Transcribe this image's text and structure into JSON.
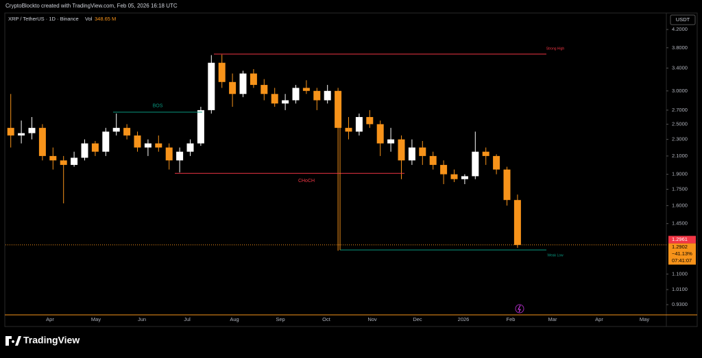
{
  "header": "CryptoBlockto created with TradingView.com, Feb 05, 2026 16:18 UTC",
  "brand": "TradingView",
  "chart_data": {
    "type": "candlestick",
    "symbol": "XRP / TetherUS · 1D · Binance",
    "volume_label": "Vol",
    "volume": "348.65 M",
    "currency": "USDT",
    "log_scale": true,
    "up_color": "#ffffff",
    "down_color": "#f7931a",
    "ylim": [
      0.886,
      4.58
    ],
    "yticks": [
      {
        "value": 4.2,
        "label": "4.2000"
      },
      {
        "value": 3.8,
        "label": "3.8000"
      },
      {
        "value": 3.4,
        "label": "3.4000"
      },
      {
        "value": 3,
        "label": "3.0000"
      },
      {
        "value": 2.7,
        "label": "2.7000"
      },
      {
        "value": 2.5,
        "label": "2.5000"
      },
      {
        "value": 2.3,
        "label": "2.3000"
      },
      {
        "value": 2.1,
        "label": "2.1000"
      },
      {
        "value": 1.9,
        "label": "1.9000"
      },
      {
        "value": 1.75,
        "label": "1.7500"
      },
      {
        "value": 1.6,
        "label": "1.6000"
      },
      {
        "value": 1.45,
        "label": "1.4500"
      },
      {
        "value": 1.1,
        "label": "1.1000"
      },
      {
        "value": 1.01,
        "label": "1.0100"
      },
      {
        "value": 0.93,
        "label": "0.9300"
      }
    ],
    "month_labels": [
      "Apr",
      "May",
      "Jun",
      "Jul",
      "Aug",
      "Sep",
      "Oct",
      "Nov",
      "Dec",
      "2026",
      "Feb",
      "Mar",
      "Apr",
      "May"
    ],
    "categories": [
      null,
      null,
      null,
      null,
      null,
      null,
      null,
      null,
      null,
      null,
      null,
      null,
      null,
      null,
      null,
      null,
      null,
      null,
      null,
      null,
      null,
      null,
      null,
      null,
      null,
      null,
      null,
      null,
      null,
      null,
      null,
      null,
      null,
      null,
      null,
      null,
      null,
      null,
      null,
      null,
      null,
      null,
      null,
      null,
      null,
      null,
      null,
      null,
      null
    ],
    "open": [
      2.45,
      2.35,
      2.38,
      2.45,
      2.1,
      2.05,
      2.0,
      2.08,
      2.25,
      2.15,
      2.4,
      2.45,
      2.35,
      2.2,
      2.25,
      2.2,
      2.05,
      2.15,
      2.25,
      2.7,
      3.5,
      3.15,
      2.95,
      3.3,
      3.1,
      2.95,
      2.8,
      2.85,
      3.05,
      3.0,
      2.85,
      3.0,
      2.45,
      2.4,
      2.6,
      2.5,
      2.25,
      2.3,
      2.05,
      2.2,
      2.1,
      2.0,
      1.9,
      1.85,
      1.88,
      2.15,
      2.1,
      1.95,
      1.65
    ],
    "high": [
      2.95,
      2.55,
      2.6,
      2.5,
      2.2,
      2.1,
      2.15,
      2.3,
      2.28,
      2.45,
      2.65,
      2.5,
      2.4,
      2.3,
      2.35,
      2.25,
      2.2,
      2.3,
      2.75,
      3.65,
      3.66,
      3.3,
      3.35,
      3.38,
      3.2,
      3.05,
      2.95,
      3.1,
      3.18,
      3.05,
      3.1,
      3.05,
      2.6,
      2.65,
      2.7,
      2.55,
      2.45,
      2.35,
      2.3,
      2.28,
      2.15,
      2.05,
      1.95,
      1.9,
      2.4,
      2.2,
      2.12,
      1.98,
      1.7
    ],
    "low": [
      2.2,
      2.25,
      2.3,
      2.05,
      1.95,
      1.62,
      1.98,
      2.05,
      2.1,
      2.1,
      2.35,
      2.3,
      2.15,
      2.1,
      2.15,
      1.95,
      1.92,
      2.1,
      2.22,
      2.65,
      3.05,
      2.75,
      2.9,
      3.05,
      2.85,
      2.75,
      2.7,
      2.8,
      2.95,
      2.7,
      2.8,
      1.25,
      2.3,
      2.35,
      2.45,
      2.1,
      2.15,
      1.85,
      2.0,
      2.0,
      1.95,
      1.8,
      1.82,
      1.8,
      1.85,
      2.0,
      1.9,
      1.6,
      1.27
    ],
    "close": [
      2.35,
      2.38,
      2.45,
      2.1,
      2.05,
      2.0,
      2.08,
      2.25,
      2.15,
      2.4,
      2.45,
      2.35,
      2.2,
      2.25,
      2.2,
      2.05,
      2.15,
      2.25,
      2.7,
      3.5,
      3.15,
      2.95,
      3.3,
      3.1,
      2.95,
      2.8,
      2.85,
      3.05,
      3.0,
      2.85,
      3.0,
      2.45,
      2.4,
      2.6,
      2.5,
      2.25,
      2.3,
      2.05,
      2.2,
      2.1,
      2.0,
      1.9,
      1.85,
      1.88,
      2.15,
      2.1,
      1.95,
      1.65,
      1.29
    ],
    "levels": [
      {
        "name": "Strong High",
        "value": 3.67,
        "color": "#f23645"
      },
      {
        "name": "Weak Low",
        "value": 1.255,
        "color": "#089981"
      },
      {
        "name": "BOS",
        "value": 2.67,
        "color": "#089981"
      },
      {
        "name": "CHoCH",
        "value": 1.91,
        "color": "#f23645"
      }
    ],
    "price_labels": [
      {
        "value": 1.2961,
        "label": "1.2961",
        "color": "#f23645"
      },
      {
        "value": 1.2902,
        "label": "1.2902",
        "change": "−41.13%",
        "countdown": "07:41:07",
        "color": "#f7931a"
      }
    ]
  }
}
